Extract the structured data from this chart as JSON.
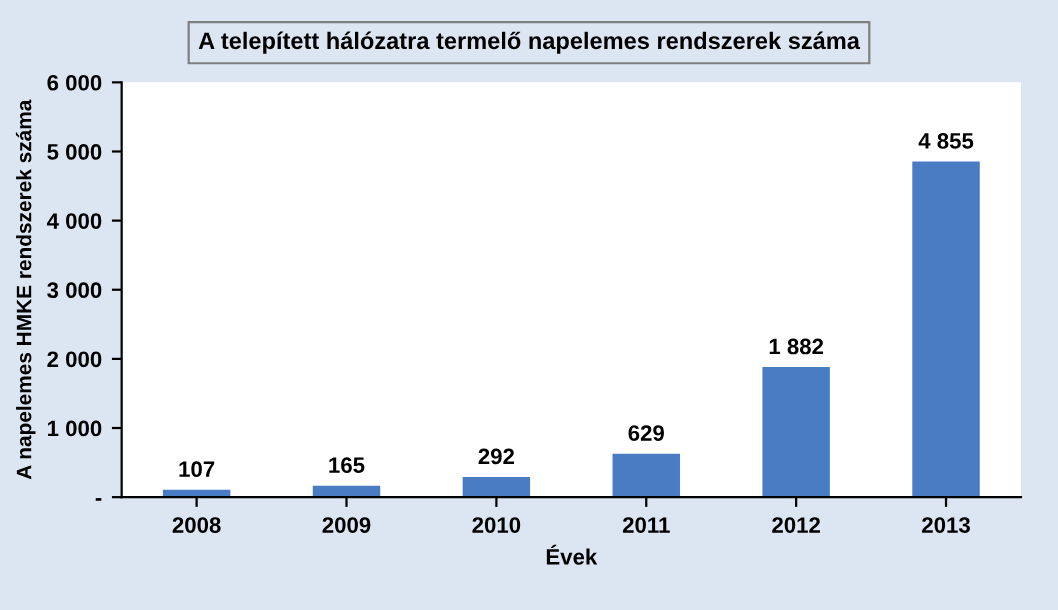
{
  "chart_data": {
    "type": "bar",
    "title": "A telepített hálózatra termelő napelemes rendszerek száma",
    "xlabel": "Évek",
    "ylabel": "A napelemes HMKE rendszerek száma",
    "categories": [
      "2008",
      "2009",
      "2010",
      "2011",
      "2012",
      "2013"
    ],
    "values": [
      107,
      165,
      292,
      629,
      1882,
      4855
    ],
    "value_labels": [
      "107",
      "165",
      "292",
      "629",
      "1 882",
      "4 855"
    ],
    "color": "#4a7cc4",
    "ylim": [
      0,
      6000
    ],
    "yticks": [
      {
        "value": 0,
        "label": "-"
      },
      {
        "value": 1000,
        "label": "1 000"
      },
      {
        "value": 2000,
        "label": "2 000"
      },
      {
        "value": 3000,
        "label": "3 000"
      },
      {
        "value": 4000,
        "label": "4 000"
      },
      {
        "value": 5000,
        "label": "5 000"
      },
      {
        "value": 6000,
        "label": "6 000"
      }
    ],
    "grid": false,
    "legend": false
  }
}
